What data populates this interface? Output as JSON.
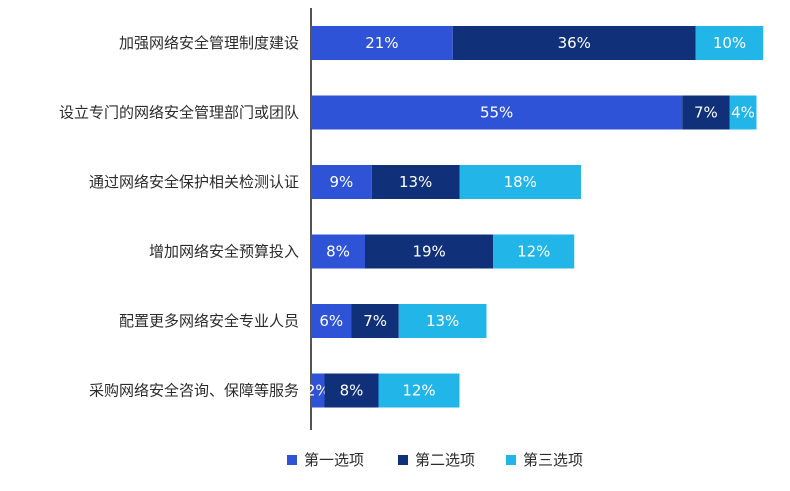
{
  "chart_data": {
    "type": "bar",
    "orientation": "horizontal",
    "stacked": true,
    "categories": [
      "加强网络安全管理制度建设",
      "设立专门的网络安全管理部门或团队",
      "通过网络安全保护相关检测认证",
      "增加网络安全预算投入",
      "配置更多网络安全专业人员",
      "采购网络安全咨询、保障等服务"
    ],
    "series": [
      {
        "name": "第一选项",
        "color": "#2f53d6",
        "values": [
          21,
          55,
          9,
          8,
          6,
          2
        ]
      },
      {
        "name": "第二选项",
        "color": "#10307a",
        "values": [
          36,
          7,
          13,
          19,
          7,
          8
        ]
      },
      {
        "name": "第三选项",
        "color": "#21b5e8",
        "values": [
          10,
          4,
          18,
          12,
          13,
          12
        ]
      }
    ],
    "value_suffix": "%",
    "xlim": [
      0,
      67
    ],
    "grid": false,
    "legend_position": "bottom"
  }
}
